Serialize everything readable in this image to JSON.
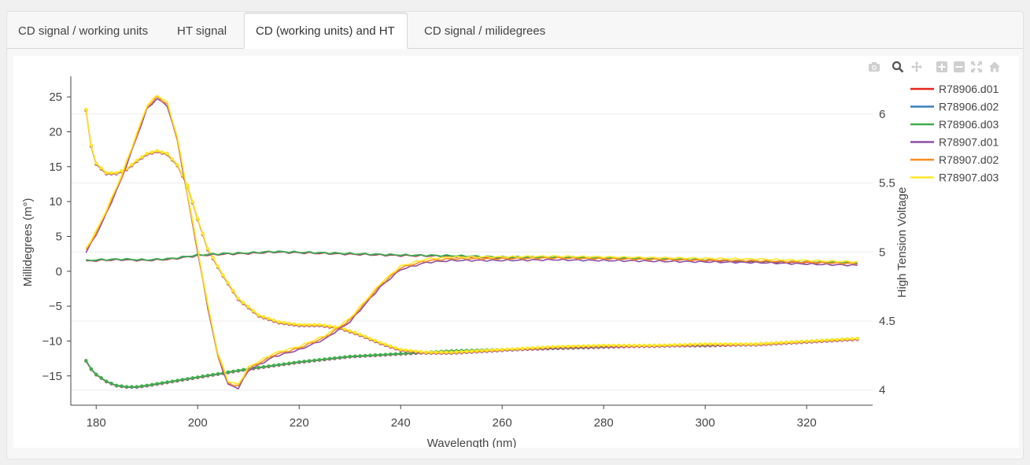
{
  "tabs": [
    {
      "label": "CD signal / working units",
      "active": false
    },
    {
      "label": "HT signal",
      "active": false
    },
    {
      "label": "CD (working units) and HT",
      "active": true
    },
    {
      "label": "CD signal / milidegrees",
      "active": false
    }
  ],
  "modebar": [
    "camera-icon",
    "zoom-icon",
    "pan-icon",
    "zoom-in-icon",
    "zoom-out-icon",
    "autoscale-icon",
    "home-icon"
  ],
  "chart_data": {
    "type": "line",
    "xlabel": "Wavelength (nm)",
    "ylabel": "Millidegrees (m°)",
    "y2label": "High Tension Voltage",
    "xlim": [
      175,
      333
    ],
    "ylim": [
      -19.2,
      27.5
    ],
    "y2lim": [
      3.89,
      6.25
    ],
    "xticks": [
      180,
      200,
      220,
      240,
      260,
      280,
      300,
      320
    ],
    "yticks": [
      25,
      20,
      15,
      10,
      5,
      0,
      -5,
      -10,
      -15
    ],
    "yticklabels": [
      "25",
      "20",
      "15",
      "10",
      "5",
      "0",
      "−5",
      "−10",
      "−15"
    ],
    "y2ticks": [
      6,
      5.5,
      5,
      4.5,
      4
    ],
    "y2ticklabels": [
      "6",
      "5.5",
      "5",
      "4.5",
      "4"
    ],
    "legend_position": "top-right",
    "series": [
      {
        "name": "R78906.d01",
        "color": "#e8231c",
        "group": "A"
      },
      {
        "name": "R78906.d02",
        "color": "#3a7fc0",
        "group": "A"
      },
      {
        "name": "R78906.d03",
        "color": "#3fae49",
        "group": "A"
      },
      {
        "name": "R78907.d01",
        "color": "#8e4fa5",
        "group": "B"
      },
      {
        "name": "R78907.d02",
        "color": "#ff8c1a",
        "group": "B"
      },
      {
        "name": "R78907.d03",
        "color": "#ffe82a",
        "group": "B"
      }
    ],
    "curves": {
      "A_cd": {
        "x": [
          178,
          180,
          185,
          190,
          195,
          200,
          205,
          210,
          215,
          220,
          230,
          240,
          250,
          260,
          270,
          280,
          290,
          300,
          310,
          320,
          330
        ],
        "y": [
          1.5,
          1.6,
          1.7,
          1.6,
          1.8,
          2.3,
          2.5,
          2.6,
          2.8,
          2.7,
          2.5,
          2.3,
          2.2,
          2.0,
          2.0,
          1.9,
          1.8,
          1.6,
          1.4,
          1.3,
          1.2
        ]
      },
      "A_ht": {
        "x": [
          178,
          179,
          180,
          182,
          184,
          186,
          188,
          190,
          195,
          200,
          205,
          210,
          220,
          230,
          240,
          250,
          260,
          270,
          280,
          290,
          300,
          310,
          320,
          330
        ],
        "y": [
          4.21,
          4.15,
          4.11,
          4.06,
          4.03,
          4.02,
          4.02,
          4.03,
          4.06,
          4.09,
          4.12,
          4.15,
          4.2,
          4.24,
          4.26,
          4.28,
          4.29,
          4.3,
          4.31,
          4.32,
          4.32,
          4.33,
          4.35,
          4.37
        ]
      },
      "B_cd": {
        "x": [
          178,
          180,
          182,
          185,
          188,
          190,
          192,
          194,
          196,
          198,
          200,
          202,
          204,
          206,
          208,
          210,
          215,
          220,
          225,
          230,
          233,
          236,
          240,
          245,
          250,
          260,
          270,
          280,
          290,
          300,
          310,
          320,
          330
        ],
        "y": [
          3,
          5.5,
          8.5,
          13.5,
          19.5,
          23.5,
          25,
          24,
          19,
          11,
          3,
          -5,
          -12,
          -16,
          -16.5,
          -14,
          -12,
          -11,
          -9.5,
          -7,
          -4.5,
          -2,
          0.5,
          1.5,
          1.8,
          1.8,
          1.9,
          1.8,
          1.7,
          1.6,
          1.5,
          1.3,
          1.1
        ]
      },
      "B_ht": {
        "x": [
          178,
          179,
          180,
          182,
          184,
          186,
          188,
          190,
          192,
          194,
          196,
          198,
          200,
          202,
          205,
          208,
          212,
          216,
          220,
          224,
          228,
          232,
          236,
          240,
          245,
          250,
          260,
          270,
          280,
          290,
          300,
          310,
          320,
          330
        ],
        "y": [
          6.03,
          5.77,
          5.64,
          5.57,
          5.57,
          5.6,
          5.66,
          5.71,
          5.73,
          5.71,
          5.63,
          5.48,
          5.24,
          5.02,
          4.83,
          4.66,
          4.54,
          4.49,
          4.47,
          4.47,
          4.45,
          4.4,
          4.34,
          4.29,
          4.27,
          4.27,
          4.29,
          4.31,
          4.32,
          4.32,
          4.33,
          4.33,
          4.35,
          4.37
        ]
      }
    }
  }
}
